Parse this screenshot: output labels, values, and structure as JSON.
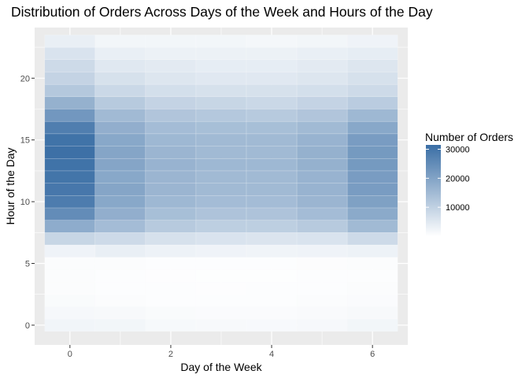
{
  "chart_data": {
    "type": "heatmap",
    "title": "Distribution of Orders Across Days of the Week and Hours of the Day",
    "xlabel": "Day of the Week",
    "ylabel": "Hour of the Day",
    "x": [
      0,
      1,
      2,
      3,
      4,
      5,
      6
    ],
    "y": [
      0,
      1,
      2,
      3,
      4,
      5,
      6,
      7,
      8,
      9,
      10,
      11,
      12,
      13,
      14,
      15,
      16,
      17,
      18,
      19,
      20,
      21,
      22,
      23
    ],
    "xticks": [
      "0",
      "2",
      "4",
      "6"
    ],
    "yticks": [
      "0",
      "5",
      "10",
      "15",
      "20"
    ],
    "xlim": [
      -0.7,
      6.7
    ],
    "ylim": [
      -1.6,
      24.1
    ],
    "grid": true,
    "legend": {
      "title": "Number of Orders",
      "position": "right",
      "ticks": [
        "10000",
        "20000",
        "30000"
      ],
      "tick_values": [
        10000,
        20000,
        30000
      ],
      "min": 0,
      "max": 31500,
      "color_low": "#ffffff",
      "color_high": "#3a6ea5"
    },
    "values": [
      [
        2200,
        2000,
        1400,
        1300,
        1200,
        1500,
        2000
      ],
      [
        1500,
        1300,
        900,
        800,
        800,
        1000,
        1300
      ],
      [
        900,
        700,
        500,
        500,
        500,
        600,
        800
      ],
      [
        700,
        500,
        400,
        350,
        400,
        450,
        600
      ],
      [
        600,
        400,
        350,
        300,
        300,
        400,
        500
      ],
      [
        700,
        600,
        500,
        450,
        450,
        550,
        600
      ],
      [
        2500,
        3500,
        2800,
        2500,
        2400,
        2500,
        2800
      ],
      [
        9000,
        8000,
        6500,
        6000,
        5800,
        6000,
        8000
      ],
      [
        18000,
        14500,
        11500,
        10500,
        10500,
        11500,
        15000
      ],
      [
        25000,
        17500,
        14000,
        13000,
        13000,
        14500,
        18500
      ],
      [
        28500,
        19000,
        15500,
        14500,
        14500,
        16000,
        20500
      ],
      [
        29500,
        19500,
        16000,
        15000,
        15000,
        16500,
        21500
      ],
      [
        30000,
        19000,
        16000,
        15000,
        15000,
        16500,
        21500
      ],
      [
        30500,
        19500,
        16500,
        15500,
        15500,
        17000,
        22000
      ],
      [
        31000,
        19500,
        16000,
        15000,
        15000,
        17000,
        22000
      ],
      [
        30500,
        19000,
        15500,
        15000,
        15000,
        16500,
        21500
      ],
      [
        28000,
        17500,
        14500,
        14000,
        14000,
        15000,
        19000
      ],
      [
        22500,
        15000,
        12500,
        12000,
        11500,
        12500,
        15500
      ],
      [
        17000,
        11500,
        9500,
        9000,
        8500,
        9500,
        11000
      ],
      [
        12000,
        8500,
        7000,
        6500,
        6500,
        7000,
        8000
      ],
      [
        9500,
        6500,
        5500,
        5000,
        5000,
        5500,
        6500
      ],
      [
        8000,
        5000,
        4500,
        4000,
        4000,
        4500,
        5500
      ],
      [
        6000,
        3500,
        3000,
        3000,
        3000,
        3500,
        4000
      ],
      [
        3500,
        2000,
        2000,
        2000,
        1800,
        2000,
        2500
      ]
    ]
  }
}
